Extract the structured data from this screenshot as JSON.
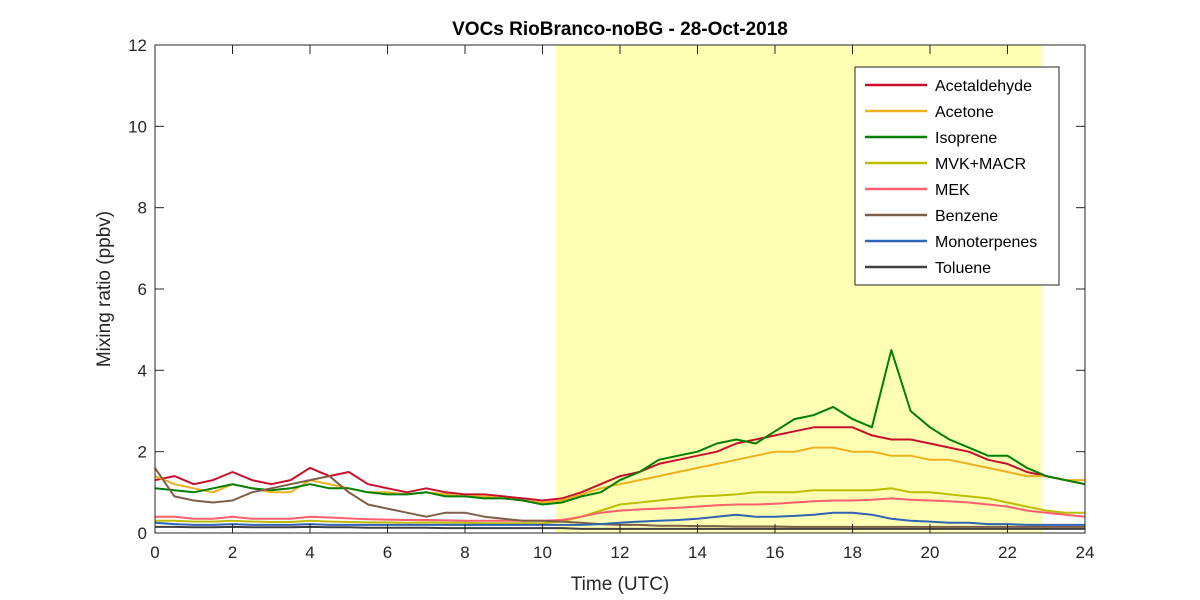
{
  "chart_data": {
    "type": "line",
    "title": "VOCs RioBranco-noBG - 28-Oct-2018",
    "xlabel": "Time (UTC)",
    "ylabel": "Mixing ratio (ppbv)",
    "xlim": [
      0,
      24
    ],
    "ylim": [
      0,
      12
    ],
    "xticks": [
      0,
      2,
      4,
      6,
      8,
      10,
      12,
      14,
      16,
      18,
      20,
      22,
      24
    ],
    "yticks": [
      0,
      2,
      4,
      6,
      8,
      10,
      12
    ],
    "grid": false,
    "legend_position": "top-right",
    "daytime_shading": {
      "x_start": 10.35,
      "x_end": 22.9,
      "color": "#ffffb3"
    },
    "series": [
      {
        "name": "Acetaldehyde",
        "color": "#c8102e",
        "x": [
          0,
          0.5,
          1,
          1.5,
          2,
          2.5,
          3,
          3.5,
          4,
          4.5,
          5,
          5.5,
          6,
          6.5,
          7,
          7.5,
          8,
          8.5,
          9,
          9.5,
          10,
          10.5,
          11,
          11.5,
          12,
          12.5,
          13,
          13.5,
          14,
          14.5,
          15,
          15.5,
          16,
          16.5,
          17,
          17.5,
          18,
          18.5,
          19,
          19.5,
          20,
          20.5,
          21,
          21.5,
          22,
          22.5,
          23,
          23.5,
          24
        ],
        "values": [
          1.3,
          1.4,
          1.2,
          1.3,
          1.5,
          1.3,
          1.2,
          1.3,
          1.6,
          1.4,
          1.5,
          1.2,
          1.1,
          1.0,
          1.1,
          1.0,
          0.95,
          0.95,
          0.9,
          0.85,
          0.8,
          0.85,
          1.0,
          1.2,
          1.4,
          1.5,
          1.7,
          1.8,
          1.9,
          2.0,
          2.2,
          2.3,
          2.4,
          2.5,
          2.6,
          2.6,
          2.6,
          2.4,
          2.3,
          2.3,
          2.2,
          2.1,
          2.0,
          1.8,
          1.7,
          1.5,
          1.4,
          1.3,
          1.2
        ]
      },
      {
        "name": "Acetone",
        "color": "#edb120",
        "x": [
          0,
          0.5,
          1,
          1.5,
          2,
          2.5,
          3,
          3.5,
          4,
          4.5,
          5,
          5.5,
          6,
          6.5,
          7,
          7.5,
          8,
          8.5,
          9,
          9.5,
          10,
          10.5,
          11,
          11.5,
          12,
          12.5,
          13,
          13.5,
          14,
          14.5,
          15,
          15.5,
          16,
          16.5,
          17,
          17.5,
          18,
          18.5,
          19,
          19.5,
          20,
          20.5,
          21,
          21.5,
          22,
          22.5,
          23,
          23.5,
          24
        ],
        "values": [
          1.4,
          1.2,
          1.1,
          1.0,
          1.2,
          1.1,
          1.0,
          1.0,
          1.3,
          1.2,
          1.1,
          1.0,
          1.0,
          0.95,
          1.0,
          0.95,
          0.9,
          0.9,
          0.85,
          0.8,
          0.75,
          0.8,
          0.95,
          1.1,
          1.2,
          1.3,
          1.4,
          1.5,
          1.6,
          1.7,
          1.8,
          1.9,
          2.0,
          2.0,
          2.1,
          2.1,
          2.0,
          2.0,
          1.9,
          1.9,
          1.8,
          1.8,
          1.7,
          1.6,
          1.5,
          1.4,
          1.4,
          1.3,
          1.3
        ]
      },
      {
        "name": "Isoprene",
        "color": "#007f00",
        "x": [
          0,
          0.5,
          1,
          1.5,
          2,
          2.5,
          3,
          3.5,
          4,
          4.5,
          5,
          5.5,
          6,
          6.5,
          7,
          7.5,
          8,
          8.5,
          9,
          9.5,
          10,
          10.5,
          11,
          11.5,
          12,
          12.5,
          13,
          13.5,
          14,
          14.5,
          15,
          15.5,
          16,
          16.5,
          17,
          17.5,
          18,
          18.5,
          19,
          19.5,
          20,
          20.5,
          21,
          21.5,
          22,
          22.5,
          23,
          23.5,
          24
        ],
        "values": [
          1.1,
          1.05,
          1.0,
          1.1,
          1.2,
          1.1,
          1.05,
          1.1,
          1.2,
          1.1,
          1.1,
          1.0,
          0.95,
          0.95,
          1.0,
          0.9,
          0.9,
          0.85,
          0.85,
          0.8,
          0.7,
          0.75,
          0.9,
          1.0,
          1.3,
          1.5,
          1.8,
          1.9,
          2.0,
          2.2,
          2.3,
          2.2,
          2.5,
          2.8,
          2.9,
          3.1,
          2.8,
          2.6,
          4.5,
          3.0,
          2.6,
          2.3,
          2.1,
          1.9,
          1.9,
          1.6,
          1.4,
          1.3,
          1.2
        ]
      },
      {
        "name": "MVK+MACR",
        "color": "#bdbd00",
        "x": [
          0,
          0.5,
          1,
          1.5,
          2,
          2.5,
          3,
          3.5,
          4,
          4.5,
          5,
          5.5,
          6,
          6.5,
          7,
          7.5,
          8,
          8.5,
          9,
          9.5,
          10,
          10.5,
          11,
          11.5,
          12,
          12.5,
          13,
          13.5,
          14,
          14.5,
          15,
          15.5,
          16,
          16.5,
          17,
          17.5,
          18,
          18.5,
          19,
          19.5,
          20,
          20.5,
          21,
          21.5,
          22,
          22.5,
          23,
          23.5,
          24
        ],
        "values": [
          0.3,
          0.3,
          0.28,
          0.28,
          0.3,
          0.28,
          0.27,
          0.27,
          0.3,
          0.28,
          0.27,
          0.26,
          0.26,
          0.25,
          0.26,
          0.25,
          0.25,
          0.24,
          0.24,
          0.24,
          0.24,
          0.28,
          0.4,
          0.55,
          0.7,
          0.75,
          0.8,
          0.85,
          0.9,
          0.92,
          0.95,
          1.0,
          1.0,
          1.0,
          1.05,
          1.05,
          1.05,
          1.05,
          1.1,
          1.0,
          1.0,
          0.95,
          0.9,
          0.85,
          0.75,
          0.65,
          0.55,
          0.5,
          0.5
        ]
      },
      {
        "name": "MEK",
        "color": "#ff5f6e",
        "x": [
          0,
          0.5,
          1,
          1.5,
          2,
          2.5,
          3,
          3.5,
          4,
          4.5,
          5,
          5.5,
          6,
          6.5,
          7,
          7.5,
          8,
          8.5,
          9,
          9.5,
          10,
          10.5,
          11,
          11.5,
          12,
          12.5,
          13,
          13.5,
          14,
          14.5,
          15,
          15.5,
          16,
          16.5,
          17,
          17.5,
          18,
          18.5,
          19,
          19.5,
          20,
          20.5,
          21,
          21.5,
          22,
          22.5,
          23,
          23.5,
          24
        ],
        "values": [
          0.4,
          0.4,
          0.35,
          0.35,
          0.4,
          0.35,
          0.35,
          0.35,
          0.4,
          0.38,
          0.36,
          0.34,
          0.33,
          0.32,
          0.32,
          0.31,
          0.3,
          0.3,
          0.3,
          0.3,
          0.3,
          0.32,
          0.4,
          0.5,
          0.55,
          0.58,
          0.6,
          0.62,
          0.65,
          0.68,
          0.7,
          0.7,
          0.72,
          0.75,
          0.78,
          0.8,
          0.8,
          0.82,
          0.85,
          0.82,
          0.8,
          0.78,
          0.75,
          0.7,
          0.65,
          0.55,
          0.5,
          0.45,
          0.4
        ]
      },
      {
        "name": "Benzene",
        "color": "#7e5f47",
        "x": [
          0,
          0.5,
          1,
          1.5,
          2,
          2.5,
          3,
          3.5,
          4,
          4.5,
          5,
          5.5,
          6,
          6.5,
          7,
          7.5,
          8,
          8.5,
          9,
          9.5,
          10,
          10.5,
          11,
          11.5,
          12,
          12.5,
          13,
          13.5,
          14,
          14.5,
          15,
          15.5,
          16,
          16.5,
          17,
          17.5,
          18,
          18.5,
          19,
          19.5,
          20,
          20.5,
          21,
          21.5,
          22,
          22.5,
          23,
          23.5,
          24
        ],
        "values": [
          1.6,
          0.9,
          0.8,
          0.75,
          0.8,
          1.0,
          1.1,
          1.2,
          1.3,
          1.4,
          1.0,
          0.7,
          0.6,
          0.5,
          0.4,
          0.5,
          0.5,
          0.4,
          0.35,
          0.3,
          0.3,
          0.28,
          0.25,
          0.22,
          0.2,
          0.2,
          0.18,
          0.18,
          0.17,
          0.17,
          0.16,
          0.16,
          0.16,
          0.15,
          0.15,
          0.15,
          0.15,
          0.15,
          0.15,
          0.15,
          0.15,
          0.15,
          0.15,
          0.15,
          0.15,
          0.15,
          0.15,
          0.15,
          0.15
        ]
      },
      {
        "name": "Monoterpenes",
        "color": "#2f63b4",
        "x": [
          0,
          0.5,
          1,
          1.5,
          2,
          2.5,
          3,
          3.5,
          4,
          4.5,
          5,
          5.5,
          6,
          6.5,
          7,
          7.5,
          8,
          8.5,
          9,
          9.5,
          10,
          10.5,
          11,
          11.5,
          12,
          12.5,
          13,
          13.5,
          14,
          14.5,
          15,
          15.5,
          16,
          16.5,
          17,
          17.5,
          18,
          18.5,
          19,
          19.5,
          20,
          20.5,
          21,
          21.5,
          22,
          22.5,
          23,
          23.5,
          24
        ],
        "values": [
          0.25,
          0.22,
          0.2,
          0.2,
          0.22,
          0.2,
          0.2,
          0.2,
          0.22,
          0.2,
          0.2,
          0.2,
          0.2,
          0.2,
          0.2,
          0.2,
          0.2,
          0.2,
          0.2,
          0.2,
          0.2,
          0.2,
          0.2,
          0.22,
          0.25,
          0.28,
          0.3,
          0.32,
          0.35,
          0.4,
          0.45,
          0.4,
          0.4,
          0.42,
          0.45,
          0.5,
          0.5,
          0.45,
          0.35,
          0.3,
          0.28,
          0.25,
          0.25,
          0.22,
          0.22,
          0.2,
          0.2,
          0.2,
          0.2
        ]
      },
      {
        "name": "Toluene",
        "color": "#404040",
        "x": [
          0,
          0.5,
          1,
          1.5,
          2,
          2.5,
          3,
          3.5,
          4,
          4.5,
          5,
          5.5,
          6,
          6.5,
          7,
          7.5,
          8,
          8.5,
          9,
          9.5,
          10,
          10.5,
          11,
          11.5,
          12,
          12.5,
          13,
          13.5,
          14,
          14.5,
          15,
          15.5,
          16,
          16.5,
          17,
          17.5,
          18,
          18.5,
          19,
          19.5,
          20,
          20.5,
          21,
          21.5,
          22,
          22.5,
          23,
          23.5,
          24
        ],
        "values": [
          0.15,
          0.15,
          0.14,
          0.14,
          0.15,
          0.14,
          0.14,
          0.14,
          0.15,
          0.14,
          0.14,
          0.13,
          0.13,
          0.13,
          0.13,
          0.12,
          0.12,
          0.12,
          0.12,
          0.12,
          0.12,
          0.12,
          0.1,
          0.1,
          0.1,
          0.1,
          0.1,
          0.1,
          0.1,
          0.1,
          0.1,
          0.1,
          0.1,
          0.1,
          0.1,
          0.1,
          0.1,
          0.1,
          0.1,
          0.1,
          0.1,
          0.1,
          0.1,
          0.1,
          0.1,
          0.1,
          0.1,
          0.1,
          0.1
        ]
      }
    ]
  }
}
